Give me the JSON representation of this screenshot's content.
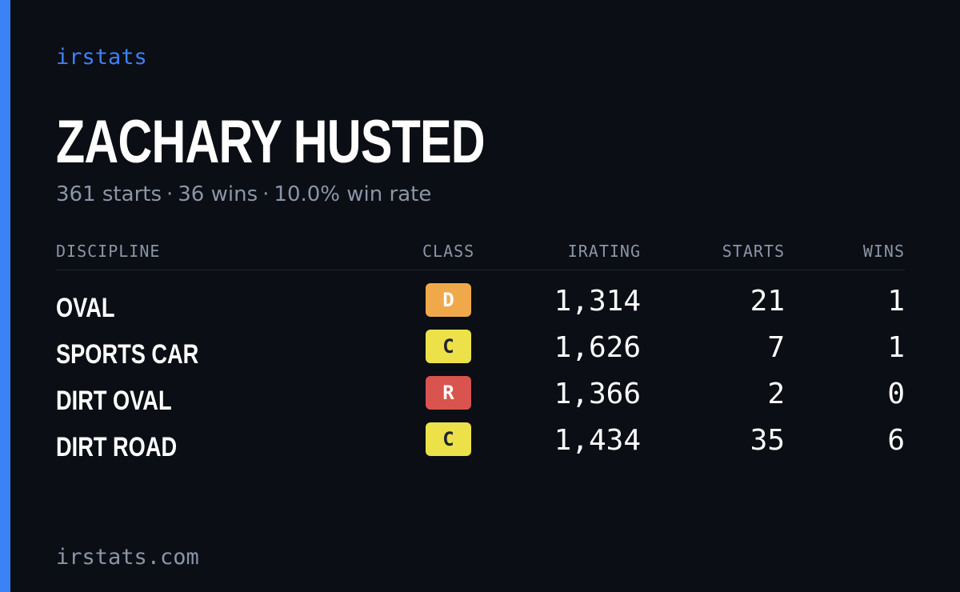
{
  "brand": "irstats",
  "driver": {
    "name": "ZACHARY HUSTED",
    "starts": "361 starts",
    "wins": "36 wins",
    "win_rate": "10.0% win rate",
    "separator": "·"
  },
  "table": {
    "headers": {
      "discipline": "DISCIPLINE",
      "class": "CLASS",
      "irating": "IRATING",
      "starts": "STARTS",
      "wins": "WINS"
    },
    "rows": [
      {
        "discipline": "OVAL",
        "class": "D",
        "class_bg": "#f0a94a",
        "class_fg": "#ffffff",
        "irating": "1,314",
        "starts": "21",
        "wins": "1"
      },
      {
        "discipline": "SPORTS CAR",
        "class": "C",
        "class_bg": "#ede14a",
        "class_fg": "#1f2430",
        "irating": "1,626",
        "starts": "7",
        "wins": "1"
      },
      {
        "discipline": "DIRT OVAL",
        "class": "R",
        "class_bg": "#d9534f",
        "class_fg": "#ffffff",
        "irating": "1,366",
        "starts": "2",
        "wins": "0"
      },
      {
        "discipline": "DIRT ROAD",
        "class": "C",
        "class_bg": "#ede14a",
        "class_fg": "#1f2430",
        "irating": "1,434",
        "starts": "35",
        "wins": "6"
      }
    ]
  },
  "footer": "irstats.com",
  "colors": {
    "accent": "#3b82f6",
    "background": "#0b0e14",
    "muted": "#8b95a7"
  }
}
